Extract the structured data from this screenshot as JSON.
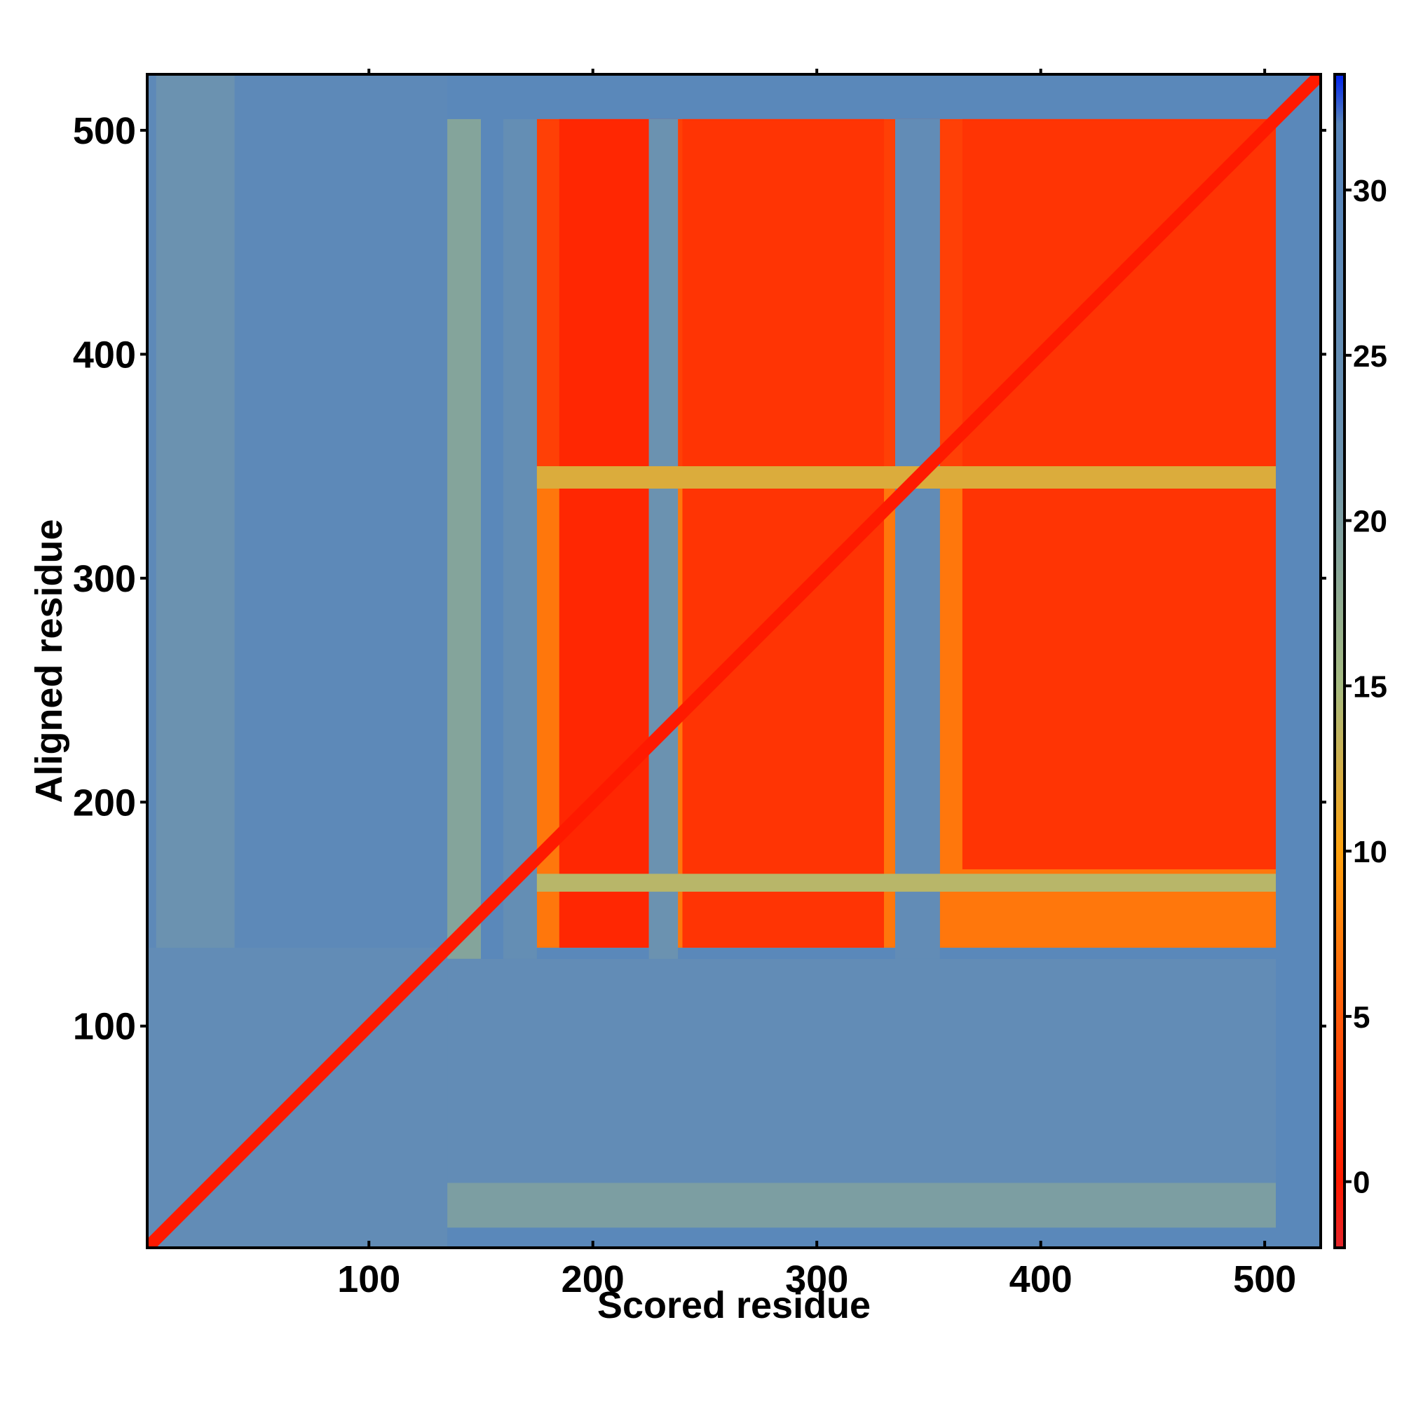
{
  "chart_data": {
    "type": "heatmap",
    "xlabel": "Scored residue",
    "ylabel": "Aligned residue",
    "xlim": [
      1,
      525
    ],
    "ylim": [
      1,
      525
    ],
    "xticks": [
      100,
      200,
      300,
      400,
      500
    ],
    "yticks": [
      100,
      200,
      300,
      400,
      500
    ],
    "colorbar": {
      "ticks": [
        0,
        5,
        10,
        15,
        20,
        25,
        30
      ],
      "range": [
        -2,
        33.5
      ],
      "stops": [
        {
          "value": -2,
          "color": "#e4262c"
        },
        {
          "value": 0,
          "color": "#ff1a00"
        },
        {
          "value": 5,
          "color": "#ff5a0a"
        },
        {
          "value": 10,
          "color": "#ffa20f"
        },
        {
          "value": 15,
          "color": "#a6bb80"
        },
        {
          "value": 22,
          "color": "#6b92b0"
        },
        {
          "value": 30,
          "color": "#5886bb"
        },
        {
          "value": 32,
          "color": "#5886bb"
        },
        {
          "value": 33.5,
          "color": "#0022ee"
        }
      ]
    },
    "background_value": 29,
    "diagonal_value": 0,
    "regions": [
      {
        "x": [
          1,
          135
        ],
        "y": [
          1,
          525
        ],
        "value": 28
      },
      {
        "x": [
          5,
          40
        ],
        "y": [
          1,
          525
        ],
        "value": 22
      },
      {
        "x": [
          135,
          150
        ],
        "y": [
          130,
          505
        ],
        "value": 19
      },
      {
        "x": [
          135,
          505
        ],
        "y": [
          10,
          30
        ],
        "value": 20
      },
      {
        "x": [
          135,
          505
        ],
        "y": [
          30,
          130
        ],
        "value": 26
      },
      {
        "x": [
          175,
          505
        ],
        "y": [
          135,
          350
        ],
        "value": 7
      },
      {
        "x": [
          175,
          505
        ],
        "y": [
          350,
          505
        ],
        "value": 3
      },
      {
        "x": [
          185,
          225
        ],
        "y": [
          135,
          505
        ],
        "value": 1
      },
      {
        "x": [
          240,
          330
        ],
        "y": [
          135,
          505
        ],
        "value": 2
      },
      {
        "x": [
          365,
          505
        ],
        "y": [
          170,
          505
        ],
        "value": 2
      },
      {
        "x": [
          335,
          355
        ],
        "y": [
          130,
          505
        ],
        "value": 26
      },
      {
        "x": [
          225,
          238
        ],
        "y": [
          130,
          505
        ],
        "value": 22
      },
      {
        "x": [
          160,
          175
        ],
        "y": [
          130,
          505
        ],
        "value": 25
      },
      {
        "x": [
          175,
          505
        ],
        "y": [
          160,
          168
        ],
        "value": 14
      },
      {
        "x": [
          175,
          505
        ],
        "y": [
          340,
          350
        ],
        "value": 12
      },
      {
        "x": [
          1,
          135
        ],
        "y": [
          1,
          135
        ],
        "value": 26
      },
      {
        "x": [
          505,
          525
        ],
        "y": [
          1,
          525
        ],
        "value": 29
      }
    ]
  }
}
